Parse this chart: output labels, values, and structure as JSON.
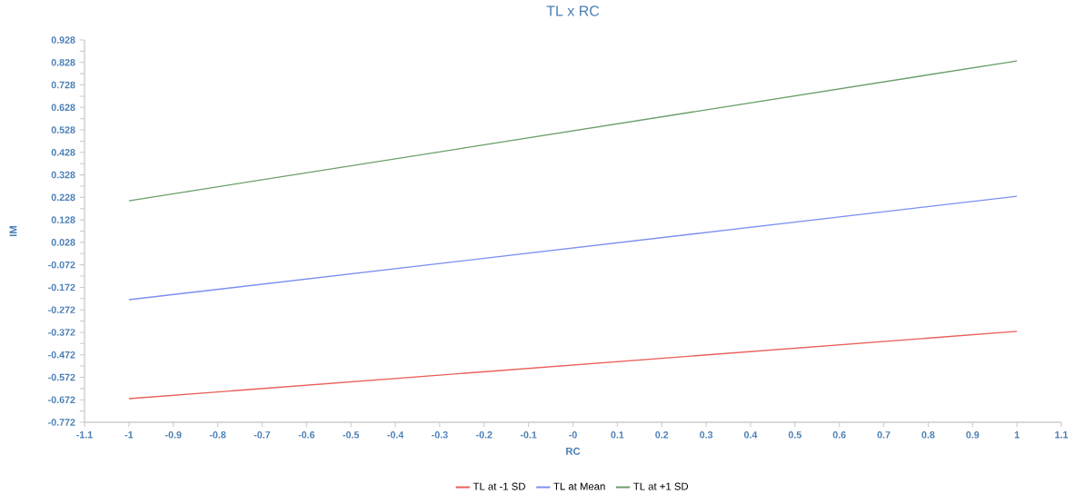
{
  "chart_data": {
    "type": "line",
    "title": "TL x RC",
    "xlabel": "RC",
    "ylabel": "IM",
    "x": [
      -1,
      1
    ],
    "series": [
      {
        "name": "TL at -1 SD",
        "color": "#e8605a",
        "values": [
          -0.667,
          -0.368
        ]
      },
      {
        "name": "TL at Mean",
        "color": "#7b8ff0",
        "values": [
          -0.227,
          0.233
        ]
      },
      {
        "name": "TL at +1 SD",
        "color": "#6a9e6a",
        "values": [
          0.213,
          0.835
        ]
      }
    ],
    "xlim": [
      -1.1,
      1.1
    ],
    "xticks": [
      -1.1,
      -1,
      -0.9,
      -0.8,
      -0.7,
      -0.6,
      -0.5,
      -0.4,
      -0.3,
      -0.2,
      -0.1,
      {
        "value": 0,
        "label": "-0"
      },
      0.1,
      0.2,
      0.3,
      0.4,
      0.5,
      0.6,
      0.7,
      0.8,
      0.9,
      1,
      1.1
    ],
    "ylim": [
      -0.772,
      0.928
    ],
    "yticks": [
      -0.772,
      -0.672,
      -0.572,
      -0.472,
      -0.372,
      -0.272,
      -0.172,
      -0.072,
      0.028,
      0.128,
      0.228,
      0.328,
      0.428,
      0.528,
      0.628,
      0.728,
      0.828,
      0.928
    ],
    "grid": false,
    "legend": "bottom",
    "marker": "none",
    "line_style": "solid"
  }
}
